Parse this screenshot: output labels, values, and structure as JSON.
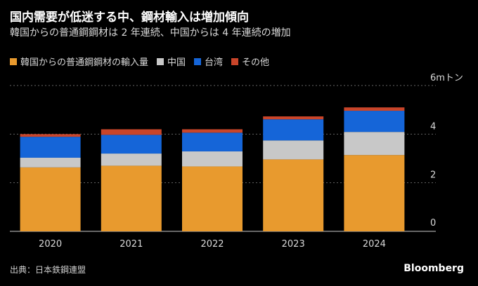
{
  "header": {
    "title": "国内需要が低迷する中、鋼材輸入は増加傾向",
    "subtitle": "韓国からの普通鋼鋼材は 2 年連続、中国からは 4 年連続の増加"
  },
  "footer": {
    "source": "出典：日本鉄鋼連盟",
    "brand": "Bloomberg"
  },
  "colors": {
    "korea": "#e89a2e",
    "china": "#c8c8c8",
    "taiwan": "#1565d8",
    "other": "#c9452a"
  },
  "chart_data": {
    "type": "bar",
    "stacked": true,
    "categories": [
      "2020",
      "2021",
      "2022",
      "2023",
      "2024"
    ],
    "series": [
      {
        "name": "韓国からの普通鋼鋼材の輸入量",
        "color": "#e89a2e",
        "values": [
          2.63,
          2.7,
          2.67,
          2.96,
          3.14
        ]
      },
      {
        "name": "中国",
        "color": "#c8c8c8",
        "values": [
          0.4,
          0.5,
          0.62,
          0.78,
          0.95
        ]
      },
      {
        "name": "台湾",
        "color": "#1565d8",
        "values": [
          0.86,
          0.77,
          0.77,
          0.87,
          0.87
        ]
      },
      {
        "name": "その他",
        "color": "#c9452a",
        "values": [
          0.11,
          0.23,
          0.14,
          0.12,
          0.14
        ]
      }
    ],
    "ylim": [
      0,
      6
    ],
    "yticks": [
      0,
      2,
      4,
      6
    ],
    "ytick_labels": [
      "0",
      "2",
      "4",
      "6mトン"
    ],
    "grid": true,
    "legend_position": "top-left"
  }
}
